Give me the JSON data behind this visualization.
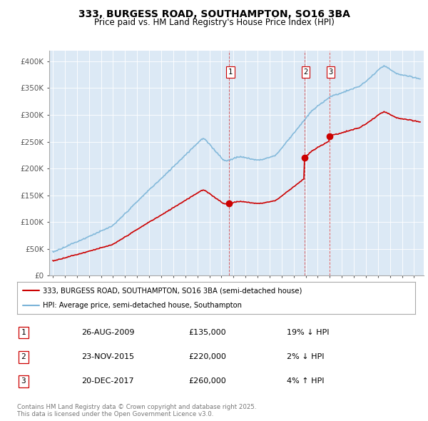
{
  "title": "333, BURGESS ROAD, SOUTHAMPTON, SO16 3BA",
  "subtitle": "Price paid vs. HM Land Registry's House Price Index (HPI)",
  "hpi_color": "#7ab4d8",
  "price_color": "#cc0000",
  "vline_color": "#cc0000",
  "bg_color": "#dce9f5",
  "plot_bg": "#dce9f5",
  "ylim": [
    0,
    420000
  ],
  "yticks": [
    0,
    50000,
    100000,
    150000,
    200000,
    250000,
    300000,
    350000,
    400000
  ],
  "ytick_labels": [
    "£0",
    "£50K",
    "£100K",
    "£150K",
    "£200K",
    "£250K",
    "£300K",
    "£350K",
    "£400K"
  ],
  "xlim_start": 1994.7,
  "xlim_end": 2025.8,
  "transactions": [
    {
      "num": 1,
      "date": "26-AUG-2009",
      "price": 135000,
      "year": 2009.65
    },
    {
      "num": 2,
      "date": "23-NOV-2015",
      "price": 220000,
      "year": 2015.9
    },
    {
      "num": 3,
      "date": "20-DEC-2017",
      "price": 260000,
      "year": 2017.97
    }
  ],
  "legend_label_price": "333, BURGESS ROAD, SOUTHAMPTON, SO16 3BA (semi-detached house)",
  "legend_label_hpi": "HPI: Average price, semi-detached house, Southampton",
  "footer": "Contains HM Land Registry data © Crown copyright and database right 2025.\nThis data is licensed under the Open Government Licence v3.0.",
  "table_rows": [
    [
      "1",
      "26-AUG-2009",
      "£135,000",
      "19% ↓ HPI"
    ],
    [
      "2",
      "23-NOV-2015",
      "£220,000",
      "2% ↓ HPI"
    ],
    [
      "3",
      "20-DEC-2017",
      "£260,000",
      "4% ↑ HPI"
    ]
  ]
}
